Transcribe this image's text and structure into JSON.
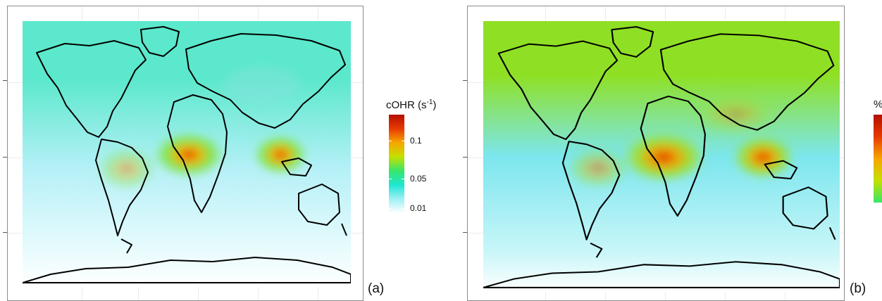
{
  "panels": [
    {
      "id": "a",
      "label": "(a)",
      "legend": {
        "title_main": "cOHR (s",
        "title_sup": "-1",
        "title_end": ")",
        "ticks": [
          "0.1",
          "0.05",
          "0.01"
        ],
        "gradient": [
          "#b31000",
          "#e83a00",
          "#f7a600",
          "#c4e000",
          "#37e66a",
          "#1ee6d2",
          "#9ff0f5",
          "#ffffff"
        ]
      },
      "map_colors": {
        "ocean": "#b4f0f7",
        "land": "#ffffff",
        "north_band": "#5ce8cc",
        "hotspot_core": "#d41e00",
        "hotspot_mid": "#f5b400",
        "hotspot_outer": "#7fe650",
        "south_fade": "#e6fbfd"
      }
    },
    {
      "id": "b",
      "label": "(b)",
      "legend": {
        "title_main": "%",
        "title_sup": "",
        "title_end": "",
        "ticks": [],
        "gradient": [
          "#b31000",
          "#e83a00",
          "#f7a600",
          "#c4e000",
          "#37e66a"
        ]
      },
      "map_colors": {
        "ocean": "#7ce6ee",
        "land": "#ffffff",
        "north_band": "#8fe024",
        "hotspot_core": "#d41e00",
        "hotspot_mid": "#f3a000",
        "hotspot_outer": "#9ae23a",
        "south_fade": "#c8f6f8"
      }
    }
  ]
}
